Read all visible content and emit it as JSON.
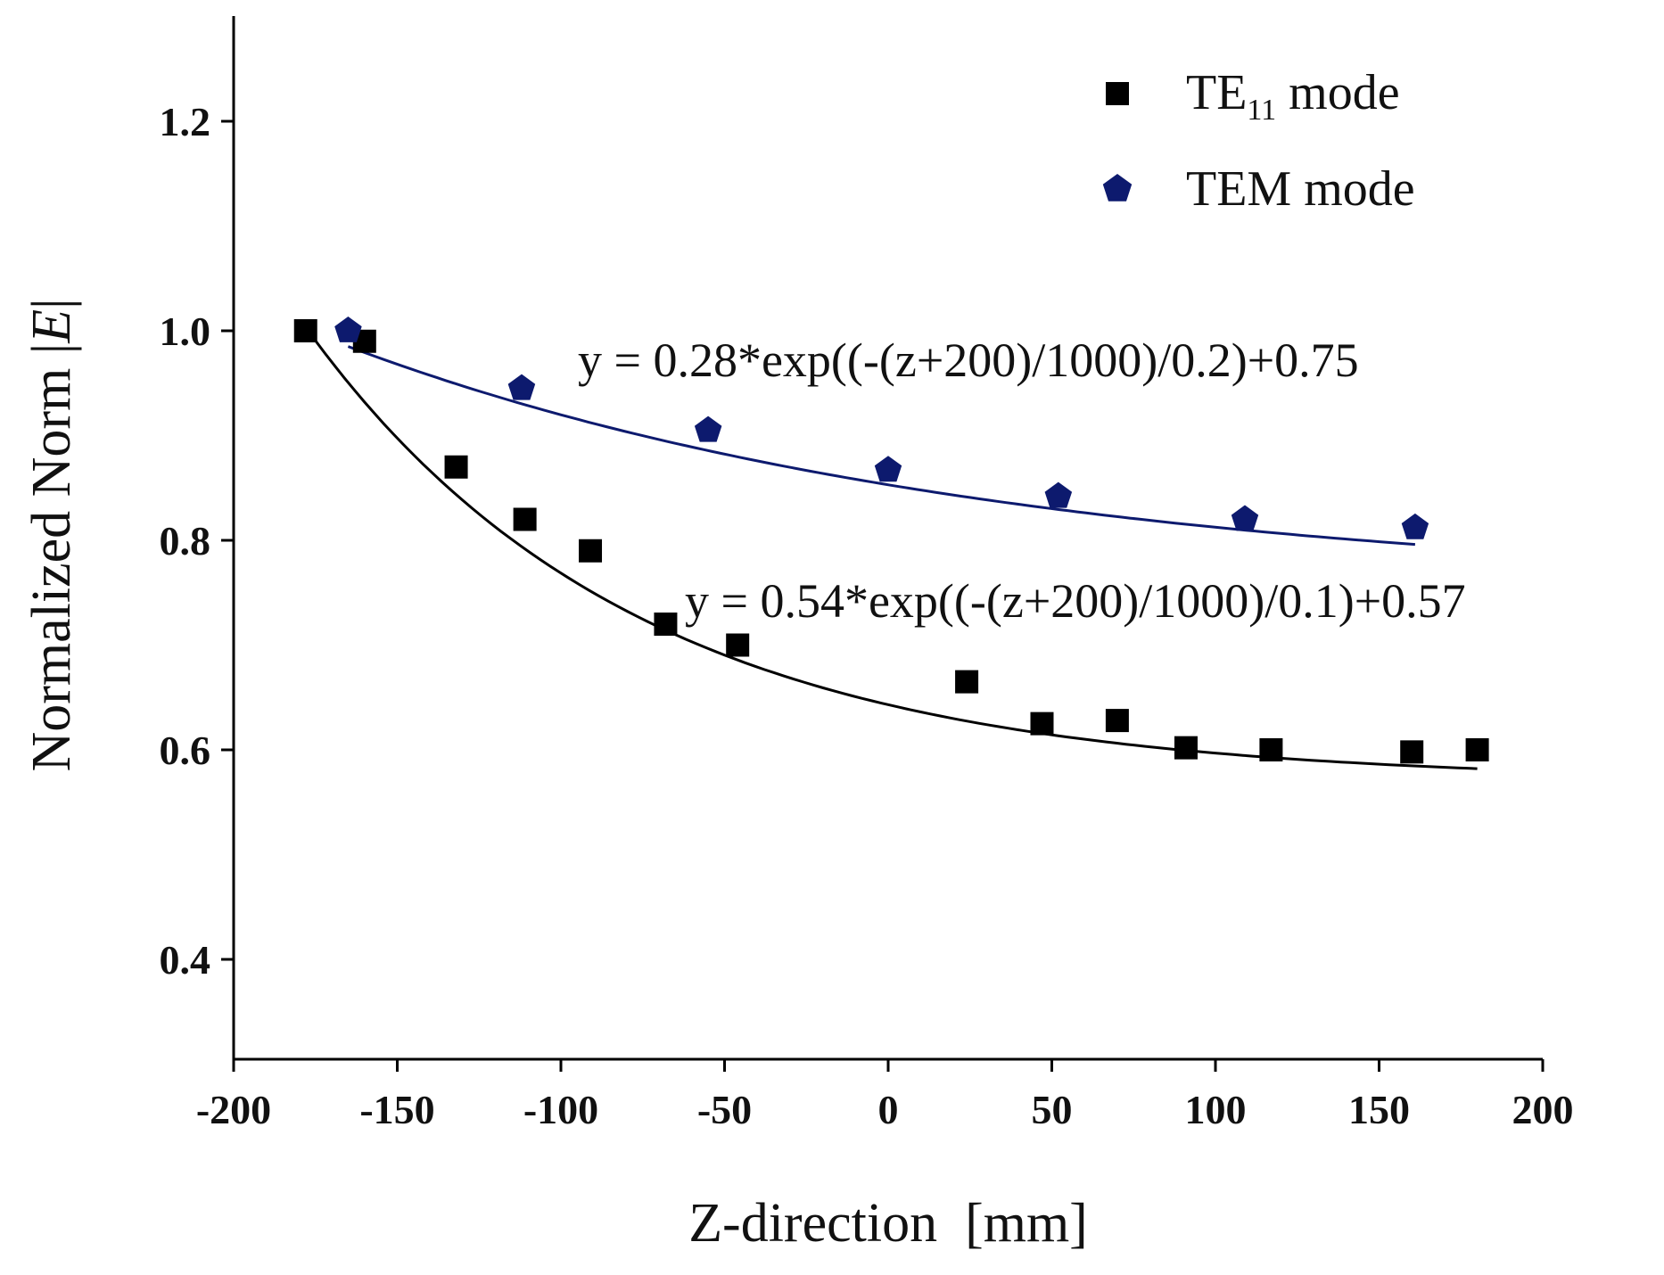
{
  "chart_data": {
    "type": "scatter",
    "title": "",
    "xlabel": "Z-direction  [mm]",
    "ylabel": {
      "prefix": "Normalized Norm |",
      "var": "E",
      "suffix": "|"
    },
    "xlim": [
      -200,
      200
    ],
    "ylim": [
      0.3,
      1.3
    ],
    "xticks": [
      "-200",
      "-150",
      "-100",
      "-50",
      "0",
      "50",
      "100",
      "150",
      "200"
    ],
    "xtick_values": [
      -200,
      -150,
      -100,
      -50,
      0,
      50,
      100,
      150,
      200
    ],
    "yticks": [
      "0.4",
      "0.6",
      "0.8",
      "1.0",
      "1.2"
    ],
    "ytick_values": [
      0.4,
      0.6,
      0.8,
      1.0,
      1.2
    ],
    "legend_position": "top-right",
    "series": [
      {
        "name": "TE11 mode",
        "legend": {
          "base": "TE",
          "sub": "11",
          "rest": " mode"
        },
        "marker": "square",
        "color": "#000000",
        "x": [
          -178,
          -160,
          -132,
          -111,
          -91,
          -68,
          -46,
          24,
          47,
          70,
          91,
          117,
          160,
          180
        ],
        "y": [
          1.0,
          0.99,
          0.87,
          0.82,
          0.79,
          0.72,
          0.7,
          0.665,
          0.625,
          0.628,
          0.602,
          0.6,
          0.598,
          0.6
        ],
        "fit": {
          "a": 0.54,
          "tau": 0.1,
          "c": 0.57,
          "x_range": [
            -178,
            180
          ]
        },
        "equation": "y = 0.54*exp((-(z+200)/1000)/0.1)+0.57"
      },
      {
        "name": "TEM mode",
        "legend": {
          "base": "TEM mode",
          "sub": "",
          "rest": ""
        },
        "marker": "pentagon",
        "color": "#0d1a6e",
        "x": [
          -165,
          -112,
          -55,
          0,
          52,
          109,
          161
        ],
        "y": [
          1.0,
          0.945,
          0.905,
          0.867,
          0.842,
          0.82,
          0.812
        ],
        "fit": {
          "a": 0.28,
          "tau": 0.2,
          "c": 0.75,
          "x_range": [
            -165,
            161
          ]
        },
        "equation": "y = 0.28*exp((-(z+200)/1000)/0.2)+0.75"
      }
    ]
  }
}
